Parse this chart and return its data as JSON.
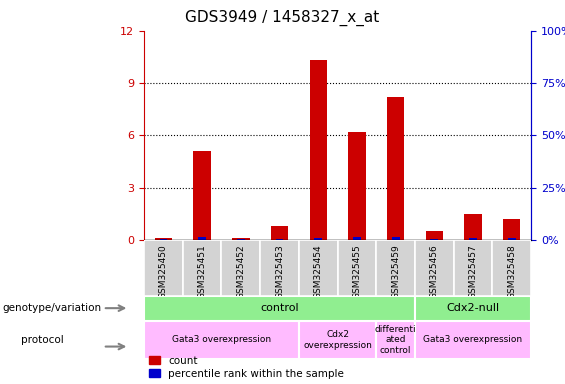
{
  "title": "GDS3949 / 1458327_x_at",
  "samples": [
    "GSM325450",
    "GSM325451",
    "GSM325452",
    "GSM325453",
    "GSM325454",
    "GSM325455",
    "GSM325459",
    "GSM325456",
    "GSM325457",
    "GSM325458"
  ],
  "count_values": [
    0.1,
    5.1,
    0.1,
    0.8,
    10.3,
    6.2,
    8.2,
    0.5,
    1.5,
    1.2
  ],
  "percentile_values": [
    0.08,
    0.15,
    0.08,
    0.08,
    0.12,
    0.15,
    0.18,
    0.08,
    0.1,
    0.1
  ],
  "count_color": "#cc0000",
  "percentile_color": "#0000cc",
  "ylim_left": [
    0,
    12
  ],
  "yticks_left": [
    0,
    3,
    6,
    9,
    12
  ],
  "ylim_right": [
    0,
    100
  ],
  "yticks_right": [
    0,
    25,
    50,
    75,
    100
  ],
  "left_label_color": "#cc0000",
  "right_label_color": "#0000cc",
  "title_fontsize": 11,
  "geno_green": "#90ee90",
  "proto_pink": "#ffbbff",
  "tick_bg": "#d3d3d3"
}
